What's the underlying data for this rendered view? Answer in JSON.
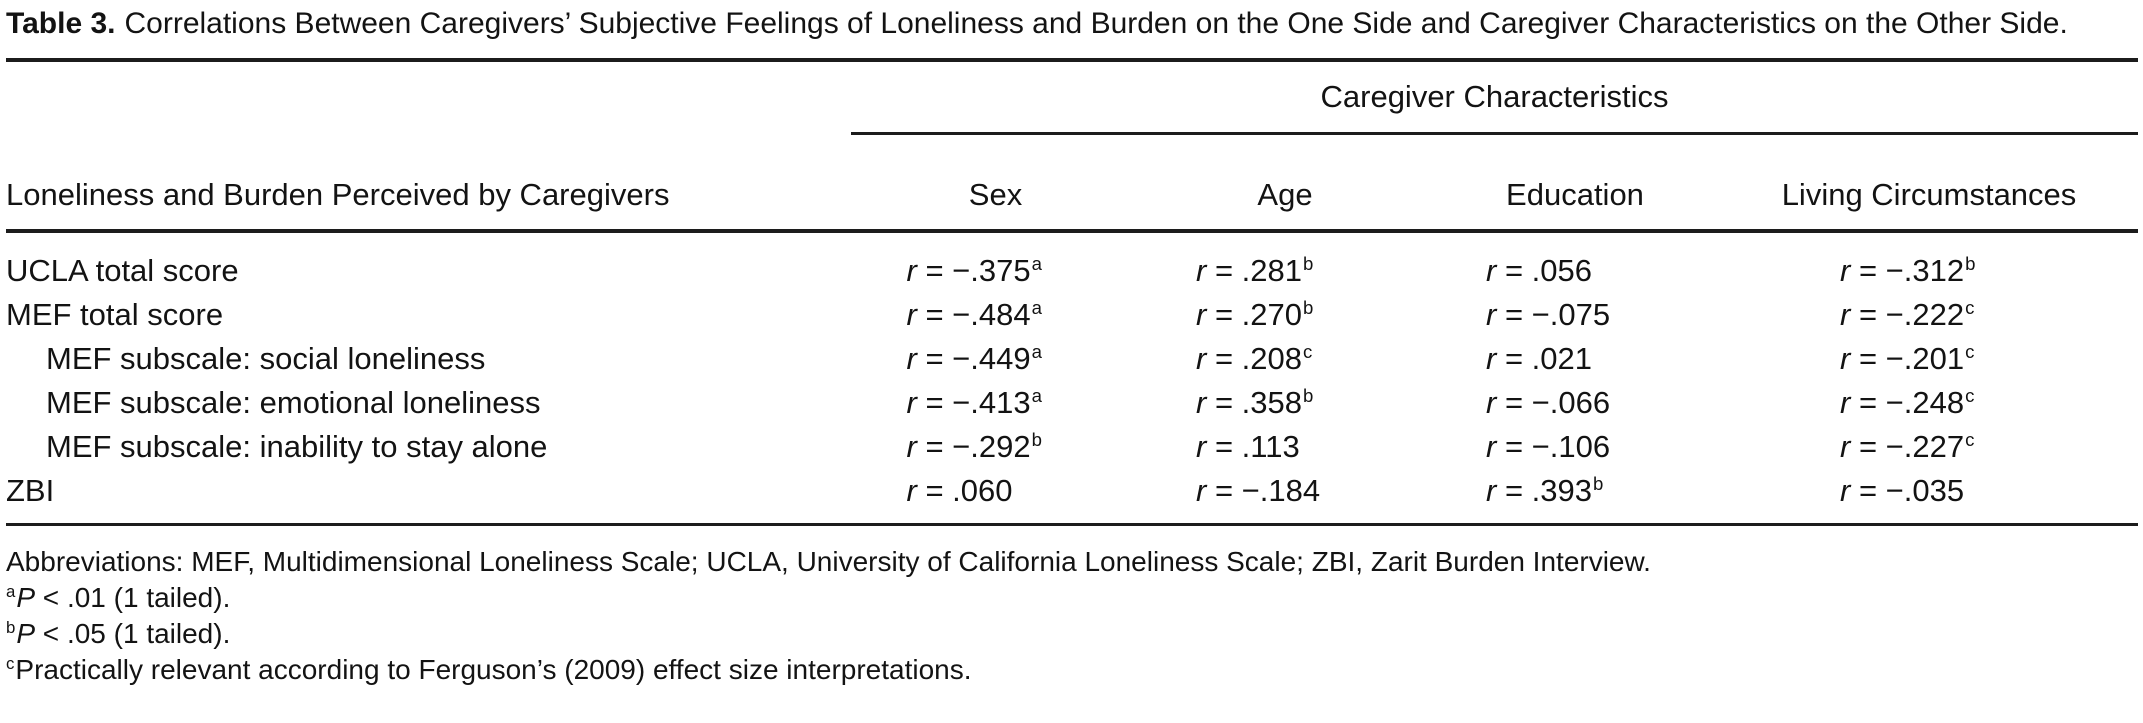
{
  "page": {
    "background": "#ffffff",
    "text_color": "#131313",
    "rule_color": "#1c1c1c"
  },
  "title": {
    "label": "Table 3.",
    "text": "Correlations Between Caregivers’ Subjective Feelings of Loneliness and Burden on the One Side and Caregiver Characteristics on the Other Side."
  },
  "table": {
    "spanner_header": "Caregiver Characteristics",
    "stub_header": "Loneliness and Burden Perceived by Caregivers",
    "columns": [
      "Sex",
      "Age",
      "Education",
      "Living Circumstances"
    ],
    "r_label": "r",
    "equals": "=",
    "rows": [
      {
        "label": "UCLA total score",
        "indent": false,
        "values": [
          {
            "value": "−.375",
            "sup": "a"
          },
          {
            "value": ".281",
            "sup": "b"
          },
          {
            "value": ".056",
            "sup": ""
          },
          {
            "value": "−.312",
            "sup": "b"
          }
        ]
      },
      {
        "label": "MEF total score",
        "indent": false,
        "values": [
          {
            "value": "−.484",
            "sup": "a"
          },
          {
            "value": ".270",
            "sup": "b"
          },
          {
            "value": "−.075",
            "sup": ""
          },
          {
            "value": "−.222",
            "sup": "c"
          }
        ]
      },
      {
        "label": "MEF subscale: social loneliness",
        "indent": true,
        "values": [
          {
            "value": "−.449",
            "sup": "a"
          },
          {
            "value": ".208",
            "sup": "c"
          },
          {
            "value": ".021",
            "sup": ""
          },
          {
            "value": "−.201",
            "sup": "c"
          }
        ]
      },
      {
        "label": "MEF subscale: emotional loneliness",
        "indent": true,
        "values": [
          {
            "value": "−.413",
            "sup": "a"
          },
          {
            "value": ".358",
            "sup": "b"
          },
          {
            "value": "−.066",
            "sup": ""
          },
          {
            "value": "−.248",
            "sup": "c"
          }
        ]
      },
      {
        "label": "MEF subscale: inability to stay alone",
        "indent": true,
        "values": [
          {
            "value": "−.292",
            "sup": "b"
          },
          {
            "value": ".113",
            "sup": ""
          },
          {
            "value": "−.106",
            "sup": ""
          },
          {
            "value": "−.227",
            "sup": "c"
          }
        ]
      },
      {
        "label": "ZBI",
        "indent": false,
        "values": [
          {
            "value": ".060",
            "sup": ""
          },
          {
            "value": "−.184",
            "sup": ""
          },
          {
            "value": ".393",
            "sup": "b"
          },
          {
            "value": "−.035",
            "sup": ""
          }
        ]
      }
    ]
  },
  "footnotes": {
    "abbreviations": "Abbreviations: MEF, Multidimensional Loneliness Scale; UCLA, University of California Loneliness Scale; ZBI, Zarit Burden Interview.",
    "items": [
      {
        "sup": "a",
        "italic": "P",
        "text": " < .01 (1 tailed)."
      },
      {
        "sup": "b",
        "italic": "P",
        "text": " < .05 (1 tailed)."
      },
      {
        "sup": "c",
        "italic": "",
        "text": "Practically relevant according to Ferguson’s (2009) effect size interpretations."
      }
    ]
  }
}
